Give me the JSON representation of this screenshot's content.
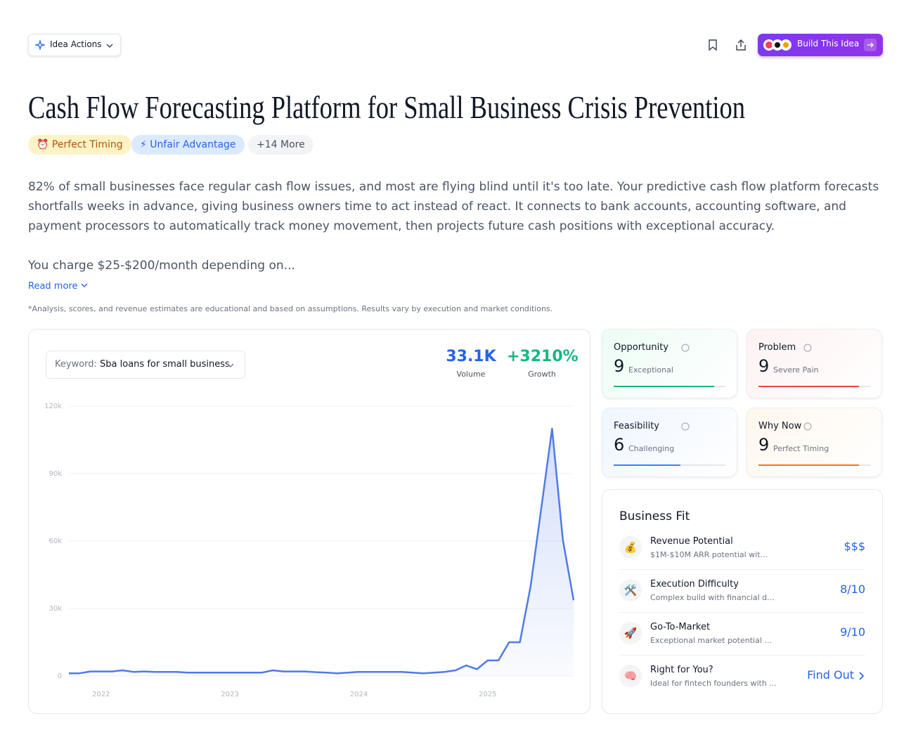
{
  "header": {
    "actions_button": "Idea Actions",
    "build_button": "Build This Idea"
  },
  "title": "Cash Flow Forecasting Platform for Small Business Crisis Prevention",
  "tags": [
    {
      "icon": "⏰",
      "label": "Perfect Timing"
    },
    {
      "icon": "⚡",
      "label": "Unfair Advantage"
    },
    {
      "label": "+14 More"
    }
  ],
  "description": [
    "82% of small businesses face regular cash flow issues, and most are flying blind until it's too late. Your predictive cash flow platform forecasts shortfalls weeks in advance, giving business owners time to act instead of react. It connects to bank accounts, accounting software, and payment processors to automatically track money movement, then projects future cash positions with exceptional accuracy.",
    "You charge $25-$200/month depending on..."
  ],
  "read_more": "Read more",
  "disclaimer": "*Analysis, scores, and revenue estimates are educational and based on assumptions. Results vary by execution and market conditions.",
  "keyword": {
    "label": "Keyword:",
    "value": "Sba loans for small business"
  },
  "stats": [
    {
      "value": "33.1K",
      "label": "Volume"
    },
    {
      "value": "+3210%",
      "label": "Growth"
    }
  ],
  "chart_data": {
    "type": "area",
    "color": "#4f7be8",
    "grid": true,
    "categories": [
      null,
      null,
      null,
      "2022",
      null,
      null,
      null,
      null,
      null,
      null,
      null,
      null,
      null,
      null,
      null,
      "2023",
      null,
      null,
      null,
      null,
      null,
      null,
      null,
      null,
      null,
      null,
      null,
      "2024",
      null,
      null,
      null,
      null,
      null,
      null,
      null,
      null,
      null,
      null,
      null,
      "2025",
      null,
      null,
      null,
      null,
      null,
      null,
      null,
      null
    ],
    "values": [
      1200,
      1200,
      2000,
      2000,
      2000,
      2500,
      1800,
      2000,
      1800,
      1800,
      1800,
      1500,
      1500,
      1500,
      1500,
      1500,
      1500,
      1500,
      1500,
      2500,
      2000,
      2000,
      2000,
      1700,
      1500,
      1200,
      1500,
      1800,
      1800,
      1800,
      1800,
      1800,
      1500,
      1200,
      1500,
      1800,
      2500,
      4700,
      3000,
      6900,
      6900,
      15000,
      15000,
      40000,
      75000,
      110000,
      60600,
      33700
    ],
    "ylim": [
      0,
      120000
    ],
    "yticks": [
      0,
      {
        "value": 30000,
        "label": "30k"
      },
      {
        "value": 60000,
        "label": "60k"
      },
      {
        "value": 90000,
        "label": "90k"
      },
      {
        "value": 120000,
        "label": "120k"
      }
    ]
  },
  "scores": {
    "xlim": [
      0,
      10
    ],
    "items": [
      {
        "name": "Opportunity",
        "score": 9,
        "label": "Exceptional",
        "color": "#10b981"
      },
      {
        "name": "Problem",
        "score": 9,
        "label": "Severe Pain",
        "color": "#ef4444"
      },
      {
        "name": "Feasibility",
        "score": 6,
        "label": "Challenging",
        "color": "#3b82f6"
      },
      {
        "name": "Why Now",
        "score": 9,
        "label": "Perfect Timing",
        "color": "#f97316"
      }
    ]
  },
  "business_fit": {
    "title": "Business Fit",
    "rows": [
      {
        "icon": "💰",
        "title": "Revenue Potential",
        "detail": "$1M-$10M ARR potential wit...",
        "value": "$$$"
      },
      {
        "icon": "🛠️",
        "title": "Execution Difficulty",
        "detail": "Complex build with financial d...",
        "value": "8/10"
      },
      {
        "icon": "🚀",
        "title": "Go-To-Market",
        "detail": "Exceptional market potential ...",
        "value": "9/10"
      },
      {
        "icon": "🧠",
        "title": "Right for You?",
        "detail": "Ideal for fintech founders with ...",
        "value": "Find Out"
      }
    ]
  }
}
